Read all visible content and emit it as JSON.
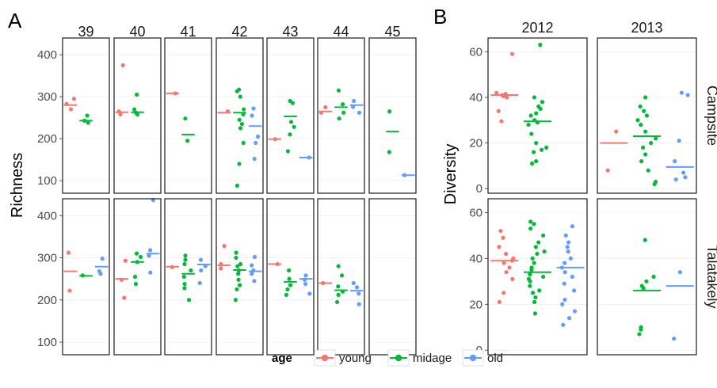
{
  "colors": {
    "young": "#F8766D",
    "midage": "#00BA38",
    "old": "#619CFF",
    "grid": "#ebebeb",
    "border": "#1a1a1a"
  },
  "legend": {
    "title": "age",
    "entries": [
      {
        "key": "young",
        "label": "young"
      },
      {
        "key": "midage",
        "label": "midage"
      },
      {
        "key": "old",
        "label": "old"
      }
    ]
  },
  "chart_data": [
    {
      "panel_label": "A",
      "type": "scatter",
      "ylabel": "Richness",
      "ylim": [
        70,
        440
      ],
      "yticks": [
        100,
        200,
        300,
        400
      ],
      "col_labels": [
        "39",
        "40",
        "41",
        "42",
        "43",
        "44",
        "45"
      ],
      "row_labels": [],
      "groups": [
        "young",
        "midage",
        "old"
      ],
      "cells": [
        {
          "row": 0,
          "col": 0,
          "series": [
            {
              "group": "young",
              "points": [
                295,
                283,
                270
              ],
              "mean": 280
            },
            {
              "group": "midage",
              "points": [
                255,
                243,
                238
              ],
              "mean": 243
            }
          ]
        },
        {
          "row": 0,
          "col": 1,
          "series": [
            {
              "group": "young",
              "points": [
                375,
                265,
                258
              ],
              "mean": 263
            },
            {
              "group": "midage",
              "points": [
                305,
                270,
                262,
                258
              ],
              "mean": 263
            }
          ]
        },
        {
          "row": 0,
          "col": 2,
          "series": [
            {
              "group": "young",
              "points": [
                308
              ],
              "mean": 308
            },
            {
              "group": "midage",
              "points": [
                248,
                195
              ],
              "mean": 210
            }
          ]
        },
        {
          "row": 0,
          "col": 3,
          "series": [
            {
              "group": "young",
              "points": [
                265
              ],
              "mean": 262
            },
            {
              "group": "midage",
              "points": [
                317,
                313,
                300,
                270,
                258,
                245,
                235,
                225,
                190,
                140,
                88
              ],
              "mean": 262
            },
            {
              "group": "old",
              "points": [
                272,
                255,
                205,
                190,
                152
              ],
              "mean": 230
            }
          ]
        },
        {
          "row": 0,
          "col": 4,
          "series": [
            {
              "group": "young",
              "points": [
                199
              ],
              "mean": 199
            },
            {
              "group": "midage",
              "points": [
                290,
                285,
                240,
                228,
                210,
                170
              ],
              "mean": 253
            },
            {
              "group": "old",
              "points": [
                155
              ],
              "mean": 155
            }
          ]
        },
        {
          "row": 0,
          "col": 5,
          "series": [
            {
              "group": "young",
              "points": [
                275,
                262
              ],
              "mean": 265
            },
            {
              "group": "midage",
              "points": [
                315,
                282,
                262,
                248
              ],
              "mean": 275
            },
            {
              "group": "old",
              "points": [
                290,
                276,
                262
              ],
              "mean": 280
            }
          ]
        },
        {
          "row": 0,
          "col": 6,
          "series": [
            {
              "group": "midage",
              "points": [
                265,
                168
              ],
              "mean": 217
            },
            {
              "group": "old",
              "points": [
                113
              ],
              "mean": 113
            }
          ]
        },
        {
          "row": 1,
          "col": 0,
          "series": [
            {
              "group": "young",
              "points": [
                312,
                222
              ],
              "mean": 268
            },
            {
              "group": "midage",
              "points": [
                258
              ],
              "mean": 257
            },
            {
              "group": "old",
              "points": [
                298,
                268,
                262
              ],
              "mean": 279
            }
          ]
        },
        {
          "row": 1,
          "col": 1,
          "series": [
            {
              "group": "young",
              "points": [
                293,
                248,
                205
              ],
              "mean": 250
            },
            {
              "group": "midage",
              "points": [
                310,
                302,
                290,
                255,
                238
              ],
              "mean": 290
            },
            {
              "group": "old",
              "points": [
                437,
                318,
                305,
                265
              ],
              "mean": 310
            }
          ]
        },
        {
          "row": 1,
          "col": 2,
          "series": [
            {
              "group": "young",
              "points": [
                278
              ],
              "mean": 279
            },
            {
              "group": "midage",
              "points": [
                305,
                295,
                285,
                270,
                255,
                238,
                228,
                200
              ],
              "mean": 262
            },
            {
              "group": "old",
              "points": [
                295,
                280,
                270,
                240
              ],
              "mean": 284
            }
          ]
        },
        {
          "row": 1,
          "col": 3,
          "series": [
            {
              "group": "young",
              "points": [
                328,
                285,
                275
              ],
              "mean": 282
            },
            {
              "group": "midage",
              "points": [
                312,
                300,
                285,
                280,
                270,
                262,
                248,
                235,
                225,
                200
              ],
              "mean": 271
            },
            {
              "group": "old",
              "points": [
                302,
                282,
                270,
                262,
                245
              ],
              "mean": 268
            }
          ]
        },
        {
          "row": 1,
          "col": 4,
          "series": [
            {
              "group": "young",
              "points": [
                285
              ],
              "mean": 285
            },
            {
              "group": "midage",
              "points": [
                270,
                250,
                235,
                225,
                212
              ],
              "mean": 243
            },
            {
              "group": "old",
              "points": [
                258,
                248,
                238,
                215
              ],
              "mean": 250
            }
          ]
        },
        {
          "row": 1,
          "col": 5,
          "series": [
            {
              "group": "young",
              "points": [
                240
              ],
              "mean": 240
            },
            {
              "group": "midage",
              "points": [
                280,
                258,
                232,
                220,
                212,
                195
              ],
              "mean": 223
            },
            {
              "group": "old",
              "points": [
                240,
                230,
                215,
                190
              ],
              "mean": 222
            }
          ]
        },
        {
          "row": 1,
          "col": 6,
          "series": []
        }
      ]
    },
    {
      "panel_label": "B",
      "type": "scatter",
      "ylabel": "Diversity",
      "ylim": [
        -2,
        66
      ],
      "yticks": [
        0,
        20,
        40,
        60
      ],
      "col_labels": [
        "2012",
        "2013"
      ],
      "row_labels": [
        "Campsite",
        "Talatakely"
      ],
      "groups": [
        "young",
        "midage",
        "old"
      ],
      "cells": [
        {
          "row": 0,
          "col": 0,
          "series": [
            {
              "group": "young",
              "points": [
                59,
                42,
                41.5,
                41,
                40.5,
                40,
                34,
                29.5
              ],
              "mean": 41
            },
            {
              "group": "midage",
              "points": [
                63,
                40,
                38,
                36,
                35,
                33,
                32,
                30,
                29,
                28,
                24,
                20,
                18,
                17,
                16,
                12,
                11
              ],
              "mean": 29.5
            }
          ]
        },
        {
          "row": 0,
          "col": 1,
          "series": [
            {
              "group": "young",
              "points": [
                25,
                8
              ],
              "mean": 20
            },
            {
              "group": "midage",
              "points": [
                40,
                36,
                34,
                32,
                30,
                28,
                25,
                22,
                20,
                18,
                15,
                12,
                8,
                3,
                2
              ],
              "mean": 23
            },
            {
              "group": "old",
              "points": [
                42,
                41,
                21,
                12,
                7,
                5,
                4
              ],
              "mean": 9.5
            }
          ]
        },
        {
          "row": 1,
          "col": 0,
          "series": [
            {
              "group": "young",
              "points": [
                52,
                49,
                45,
                42,
                40,
                39,
                38,
                36,
                34,
                31,
                25,
                21
              ],
              "mean": 39
            },
            {
              "group": "midage",
              "points": [
                56,
                55,
                53,
                50,
                47,
                45,
                43,
                42,
                40,
                38,
                36,
                35,
                33,
                32,
                31,
                30,
                28,
                26,
                25,
                23,
                21,
                16
              ],
              "mean": 34
            },
            {
              "group": "old",
              "points": [
                54,
                50,
                47,
                45,
                43,
                40,
                38,
                36,
                34,
                32,
                29,
                26,
                22,
                20,
                17,
                14,
                11
              ],
              "mean": 36
            }
          ]
        },
        {
          "row": 1,
          "col": 1,
          "series": [
            {
              "group": "midage",
              "points": [
                48,
                32,
                30,
                28,
                27,
                10,
                9,
                7
              ],
              "mean": 26
            },
            {
              "group": "old",
              "points": [
                34,
                5
              ],
              "mean": 28
            }
          ]
        }
      ]
    }
  ]
}
